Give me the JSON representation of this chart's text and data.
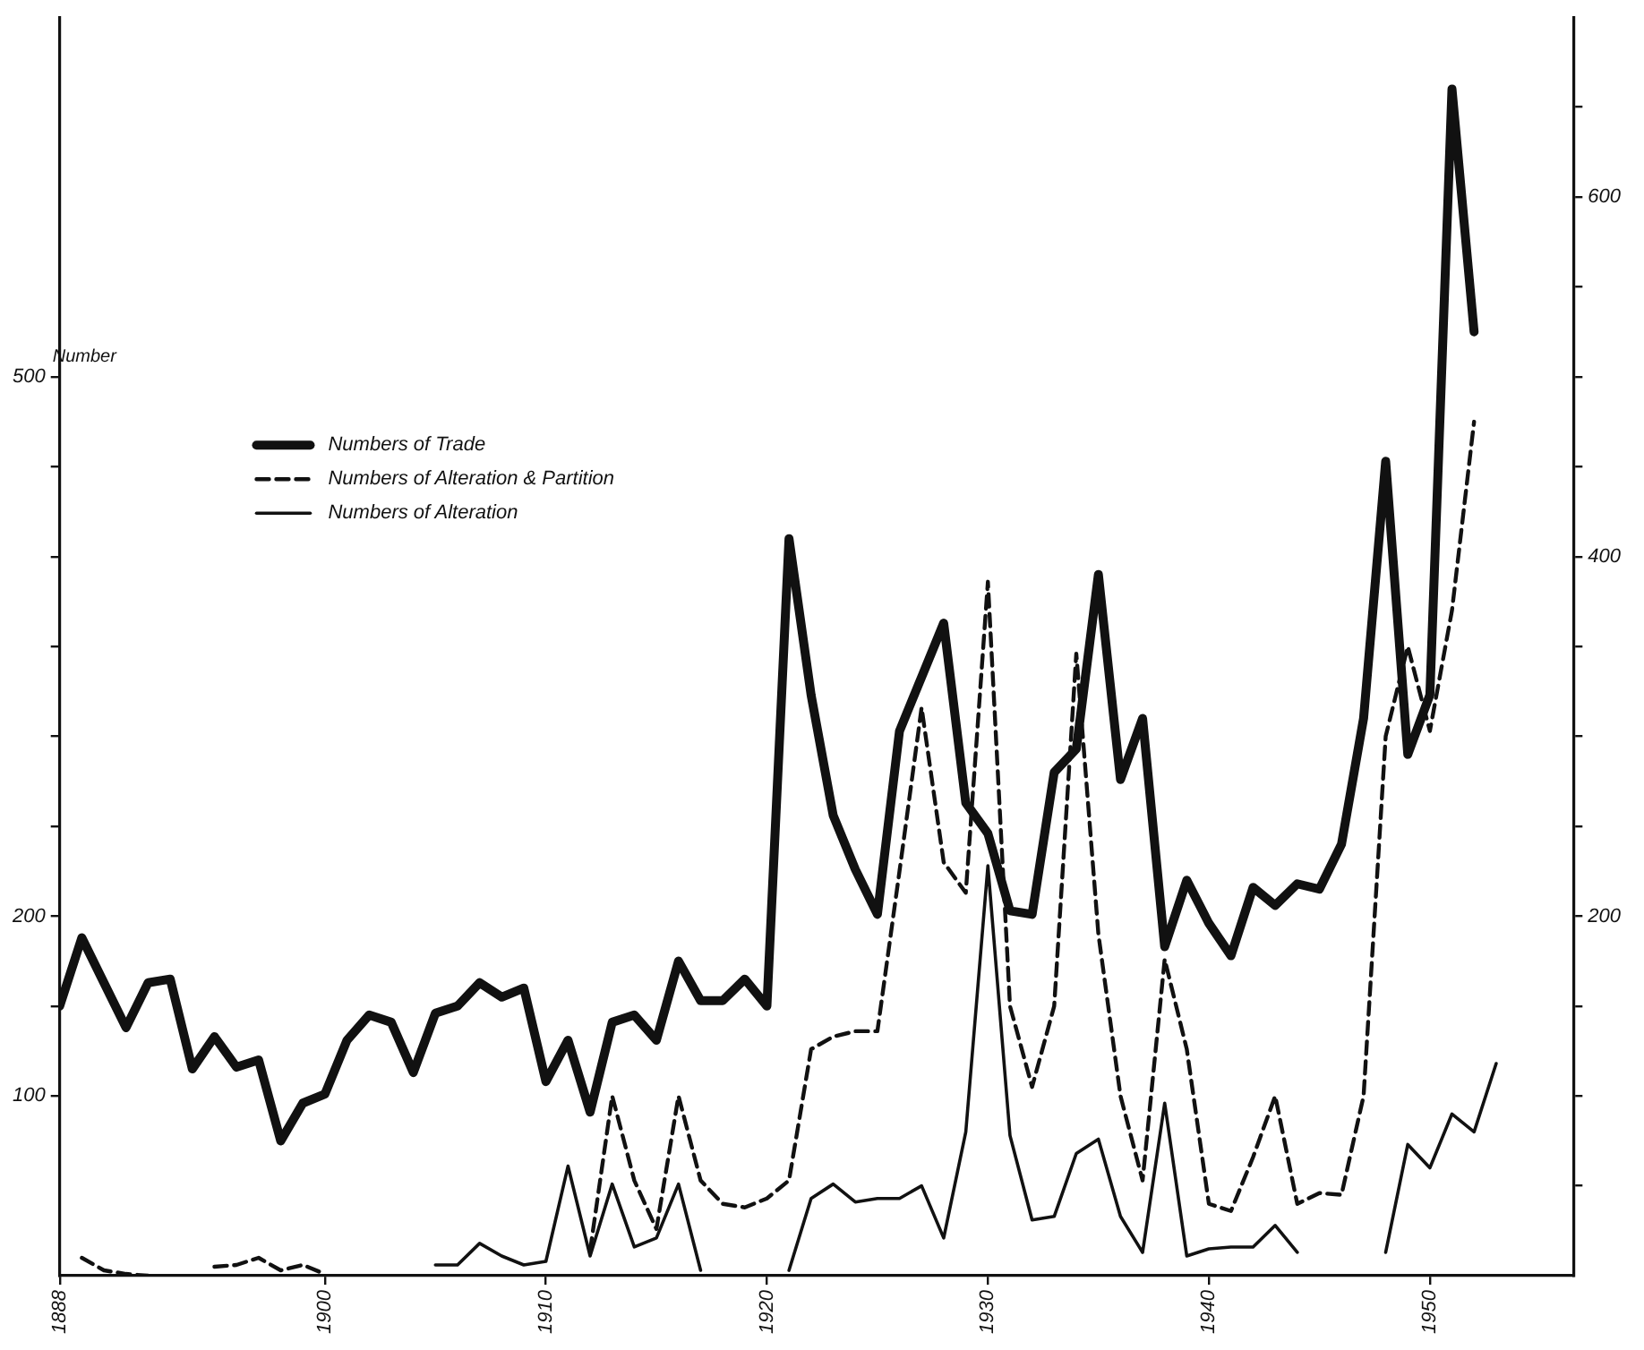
{
  "chart_data": {
    "type": "line",
    "ylabel": "Number",
    "x": [
      1888,
      1889,
      1890,
      1891,
      1892,
      1893,
      1894,
      1895,
      1896,
      1897,
      1898,
      1899,
      1900,
      1901,
      1902,
      1903,
      1904,
      1905,
      1906,
      1907,
      1908,
      1909,
      1910,
      1911,
      1912,
      1913,
      1914,
      1915,
      1916,
      1917,
      1918,
      1919,
      1920,
      1921,
      1922,
      1923,
      1924,
      1925,
      1926,
      1927,
      1928,
      1929,
      1930,
      1931,
      1932,
      1933,
      1934,
      1935,
      1936,
      1937,
      1938,
      1939,
      1940,
      1941,
      1942,
      1943,
      1944,
      1945,
      1946,
      1947,
      1948,
      1949,
      1950,
      1951,
      1952,
      1953
    ],
    "series": [
      {
        "name": "Numbers of Trade",
        "color": "#111111",
        "line_style": "solid",
        "values": [
          150,
          188,
          163,
          138,
          163,
          165,
          115,
          133,
          116,
          120,
          75,
          96,
          101,
          131,
          145,
          141,
          113,
          146,
          150,
          163,
          155,
          160,
          108,
          131,
          91,
          141,
          145,
          131,
          175,
          153,
          153,
          165,
          150,
          410,
          323,
          256,
          226,
          201,
          303,
          333,
          363,
          263,
          246,
          203,
          201,
          280,
          293,
          390,
          276,
          310,
          183,
          220,
          196,
          178,
          216,
          206,
          218,
          215,
          240,
          310,
          453,
          290,
          323,
          660,
          525,
          null
        ]
      },
      {
        "name": "Numbers of Alteration & Partition",
        "color": "#111111",
        "line_style": "dashed",
        "values": [
          null,
          10,
          3,
          1,
          0,
          null,
          null,
          5,
          6,
          10,
          3,
          6,
          1,
          null,
          null,
          null,
          null,
          null,
          null,
          null,
          null,
          null,
          null,
          null,
          14,
          100,
          53,
          26,
          100,
          53,
          40,
          38,
          43,
          53,
          126,
          133,
          136,
          136,
          225,
          316,
          230,
          213,
          386,
          150,
          105,
          150,
          346,
          190,
          100,
          53,
          176,
          126,
          40,
          36,
          66,
          100,
          40,
          46,
          45,
          100,
          300,
          350,
          303,
          370,
          475,
          null
        ]
      },
      {
        "name": "Numbers of Alteration",
        "color": "#111111",
        "line_style": "solid",
        "values": [
          null,
          null,
          null,
          null,
          null,
          null,
          null,
          null,
          null,
          null,
          null,
          null,
          null,
          null,
          null,
          null,
          null,
          6,
          6,
          18,
          11,
          6,
          8,
          61,
          11,
          51,
          16,
          21,
          51,
          3,
          null,
          null,
          null,
          3,
          43,
          51,
          41,
          43,
          43,
          50,
          21,
          80,
          228,
          78,
          31,
          33,
          68,
          76,
          33,
          13,
          96,
          11,
          15,
          16,
          16,
          28,
          13,
          null,
          null,
          null,
          13,
          73,
          60,
          90,
          80,
          118
        ]
      }
    ],
    "xlim": [
      1888,
      1956.5
    ],
    "xticks": [
      1888,
      1900,
      1910,
      1920,
      1930,
      1940,
      1950
    ],
    "ylim": [
      0,
      700
    ],
    "yticks": [
      100,
      {
        "value": 150,
        "label": null
      },
      200,
      {
        "value": 250,
        "label": null
      },
      {
        "value": 300,
        "label": null
      },
      {
        "value": 350,
        "label": null
      },
      {
        "value": 400,
        "label": null
      },
      {
        "value": 450,
        "label": null
      },
      500
    ],
    "y2lim": [
      0,
      700
    ],
    "y2ticks": [
      {
        "value": 50,
        "label": null
      },
      {
        "value": 100,
        "label": null
      },
      {
        "value": 150,
        "label": null
      },
      200,
      {
        "value": 250,
        "label": null
      },
      {
        "value": 300,
        "label": null
      },
      {
        "value": 350,
        "label": null
      },
      400,
      {
        "value": 450,
        "label": null
      },
      {
        "value": 500,
        "label": null
      },
      {
        "value": 550,
        "label": null
      },
      600,
      {
        "value": 650,
        "label": null
      }
    ],
    "grid": false,
    "legend": "top left",
    "marker": "none"
  }
}
